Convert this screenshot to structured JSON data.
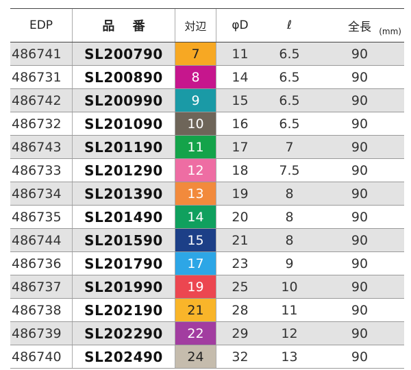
{
  "header": {
    "edp": "EDP",
    "part_no": "品 番",
    "size": "対辺",
    "phi_d": "φD",
    "ell": "ℓ",
    "length": "全長",
    "unit": "(mm)"
  },
  "rows": [
    {
      "edp": "486741",
      "code": "SL200790",
      "size": "7",
      "color": "#f7a823",
      "dark": true,
      "d": "11",
      "l": "6.5",
      "total": "90"
    },
    {
      "edp": "486731",
      "code": "SL200890",
      "size": "8",
      "color": "#c6168d",
      "dark": false,
      "d": "14",
      "l": "6.5",
      "total": "90"
    },
    {
      "edp": "486742",
      "code": "SL200990",
      "size": "9",
      "color": "#1a9aa6",
      "dark": false,
      "d": "15",
      "l": "6.5",
      "total": "90"
    },
    {
      "edp": "486732",
      "code": "SL201090",
      "size": "10",
      "color": "#6e6559",
      "dark": false,
      "d": "16",
      "l": "6.5",
      "total": "90"
    },
    {
      "edp": "486743",
      "code": "SL201190",
      "size": "11",
      "color": "#14a34a",
      "dark": false,
      "d": "17",
      "l": "7",
      "total": "90"
    },
    {
      "edp": "486733",
      "code": "SL201290",
      "size": "12",
      "color": "#ee6da3",
      "dark": false,
      "d": "18",
      "l": "7.5",
      "total": "90"
    },
    {
      "edp": "486734",
      "code": "SL201390",
      "size": "13",
      "color": "#f28a3c",
      "dark": false,
      "d": "19",
      "l": "8",
      "total": "90"
    },
    {
      "edp": "486735",
      "code": "SL201490",
      "size": "14",
      "color": "#10a05e",
      "dark": false,
      "d": "20",
      "l": "8",
      "total": "90"
    },
    {
      "edp": "486744",
      "code": "SL201590",
      "size": "15",
      "color": "#1c3f87",
      "dark": false,
      "d": "21",
      "l": "8",
      "total": "90"
    },
    {
      "edp": "486736",
      "code": "SL201790",
      "size": "17",
      "color": "#2da6e6",
      "dark": false,
      "d": "23",
      "l": "9",
      "total": "90"
    },
    {
      "edp": "486737",
      "code": "SL201990",
      "size": "19",
      "color": "#ec4650",
      "dark": false,
      "d": "25",
      "l": "10",
      "total": "90"
    },
    {
      "edp": "486738",
      "code": "SL202190",
      "size": "21",
      "color": "#f9b52a",
      "dark": true,
      "d": "28",
      "l": "11",
      "total": "90"
    },
    {
      "edp": "486739",
      "code": "SL202290",
      "size": "22",
      "color": "#a23da0",
      "dark": false,
      "d": "29",
      "l": "12",
      "total": "90"
    },
    {
      "edp": "486740",
      "code": "SL202490",
      "size": "24",
      "color": "#c5bcad",
      "dark": true,
      "d": "32",
      "l": "13",
      "total": "90"
    }
  ]
}
